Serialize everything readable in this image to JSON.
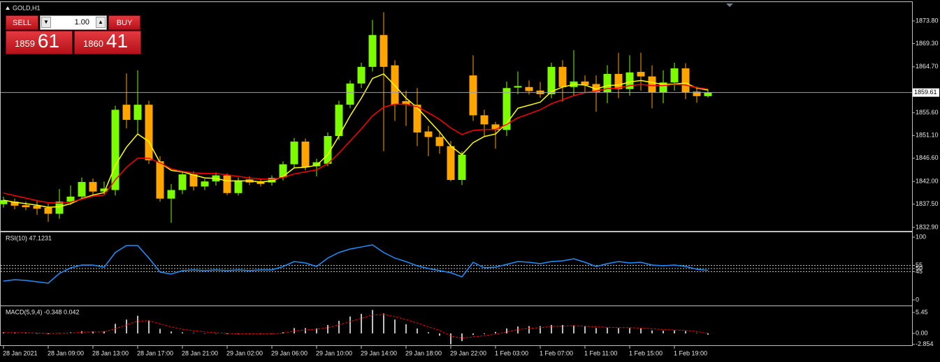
{
  "symbol": "GOLD,H1",
  "trade_panel": {
    "sell": "SELL",
    "buy": "BUY",
    "lots": "1.00",
    "bid_big": "1859",
    "bid_small": "61",
    "ask_big": "1860",
    "ask_small": "41"
  },
  "chart_data": [
    {
      "type": "candlestick",
      "title": "GOLD,H1",
      "categories": [
        "28 Jan 2021",
        null,
        null,
        null,
        "28 Jan 09:00",
        null,
        null,
        null,
        "28 Jan 13:00",
        null,
        null,
        null,
        "28 Jan 17:00",
        null,
        null,
        null,
        "28 Jan 21:00",
        null,
        null,
        null,
        "29 Jan 02:00",
        null,
        null,
        null,
        "29 Jan 06:00",
        null,
        null,
        null,
        "29 Jan 10:00",
        null,
        null,
        null,
        "29 Jan 14:00",
        null,
        null,
        null,
        "29 Jan 18:00",
        null,
        null,
        null,
        "29 Jan 22:00",
        null,
        null,
        null,
        "1 Feb 03:00",
        null,
        null,
        null,
        "1 Feb 07:00",
        null,
        null,
        null,
        "1 Feb 11:00",
        null,
        null,
        null,
        "1 Feb 15:00",
        null,
        null,
        null,
        "1 Feb 19:00",
        null,
        null,
        null
      ],
      "open": [
        1837.5,
        1838.0,
        1837.3,
        1837.2,
        1836.8,
        1835.6,
        1838.0,
        1839.0,
        1841.9,
        1840.0,
        1840.3,
        1857.2,
        1854.2,
        1857.2,
        1846.0,
        1838.6,
        1840.3,
        1843.4,
        1841.0,
        1842.0,
        1843.2,
        1839.7,
        1842.4,
        1842.0,
        1841.8,
        1842.8,
        1845.4,
        1849.9,
        1845.0,
        1845.5,
        1851.0,
        1857.2,
        1861.4,
        1864.7,
        1871.0,
        1865.0,
        1857.9,
        1857.2,
        1851.9,
        1850.8,
        1849.0,
        1842.3,
        1863.0,
        1855.1,
        1853.3,
        1852.2,
        1860.6,
        1860.7,
        1860.0,
        1859.3,
        1864.7,
        1860.7,
        1861.8,
        1861.3,
        1859.7,
        1863.3,
        1860.3,
        1863.7,
        1862.8,
        1859.6,
        1861.6,
        1864.4,
        1859.8,
        1858.9
      ],
      "high": [
        1839.0,
        1838.6,
        1838.0,
        1838.2,
        1837.6,
        1840.5,
        1841.2,
        1842.8,
        1842.6,
        1842.0,
        1857.0,
        1863.4,
        1864.0,
        1858.0,
        1847.0,
        1841.5,
        1844.0,
        1844.0,
        1842.5,
        1843.8,
        1843.6,
        1842.8,
        1843.0,
        1842.5,
        1843.2,
        1846.0,
        1850.6,
        1850.5,
        1846.5,
        1851.7,
        1858.0,
        1862.0,
        1865.5,
        1874.0,
        1875.5,
        1866.0,
        1860.0,
        1860.5,
        1853.0,
        1852.0,
        1850.0,
        1848.0,
        1867.0,
        1856.2,
        1853.8,
        1861.8,
        1863.8,
        1862.0,
        1861.7,
        1865.5,
        1866.0,
        1868.0,
        1863.0,
        1863.0,
        1865.0,
        1867.5,
        1867.0,
        1867.5,
        1865.0,
        1864.0,
        1865.5,
        1865.4,
        1860.8,
        1860.2
      ],
      "low": [
        1836.8,
        1836.5,
        1836.3,
        1835.4,
        1834.0,
        1834.6,
        1837.4,
        1838.5,
        1839.2,
        1839.5,
        1839.2,
        1852.5,
        1851.2,
        1845.5,
        1838.0,
        1833.8,
        1839.5,
        1840.2,
        1840.3,
        1841.2,
        1839.3,
        1839.2,
        1841.3,
        1841.0,
        1841.2,
        1842.2,
        1844.6,
        1844.2,
        1843.0,
        1845.0,
        1850.2,
        1856.5,
        1860.5,
        1863.8,
        1848.0,
        1854.0,
        1853.0,
        1849.0,
        1847.0,
        1847.5,
        1842.0,
        1841.3,
        1854.0,
        1851.0,
        1848.5,
        1851.0,
        1859.3,
        1859.2,
        1858.6,
        1858.5,
        1857.8,
        1858.9,
        1859.6,
        1855.8,
        1857.5,
        1858.5,
        1859.0,
        1860.0,
        1856.5,
        1857.5,
        1860.0,
        1858.3,
        1857.6,
        1858.6
      ],
      "close": [
        1838.3,
        1837.2,
        1836.9,
        1836.6,
        1835.6,
        1838.0,
        1839.0,
        1841.9,
        1840.0,
        1840.6,
        1856.2,
        1854.2,
        1857.2,
        1846.2,
        1838.6,
        1840.3,
        1843.4,
        1841.0,
        1842.0,
        1843.2,
        1839.7,
        1842.2,
        1841.8,
        1841.5,
        1842.7,
        1845.4,
        1849.9,
        1844.8,
        1845.8,
        1851.0,
        1857.2,
        1861.4,
        1864.7,
        1871.0,
        1864.7,
        1857.2,
        1857.2,
        1851.7,
        1850.8,
        1849.0,
        1842.3,
        1847.3,
        1855.1,
        1853.3,
        1852.2,
        1860.5,
        1860.9,
        1859.9,
        1859.3,
        1864.7,
        1860.7,
        1861.8,
        1861.1,
        1859.7,
        1863.3,
        1860.3,
        1863.6,
        1862.8,
        1859.6,
        1861.6,
        1864.4,
        1859.6,
        1858.9,
        1859.61
      ],
      "up_color": "#7cfc00",
      "down_color": "#ffa500",
      "series": [
        {
          "color": "#ffff00",
          "values": [
            1838.3,
            1837.9,
            1837.6,
            1837.3,
            1836.9,
            1837.0,
            1837.6,
            1838.6,
            1839.3,
            1839.8,
            1845.2,
            1848.8,
            1851.4,
            1849.9,
            1845.7,
            1844.2,
            1843.9,
            1843.3,
            1842.7,
            1842.6,
            1842.1,
            1842.1,
            1842.1,
            1841.9,
            1842.1,
            1843.0,
            1844.7,
            1844.8,
            1845.2,
            1847.3,
            1851.0,
            1855.0,
            1858.5,
            1862.4,
            1863.3,
            1861.0,
            1858.5,
            1856.6,
            1854.2,
            1851.8,
            1849.0,
            1847.3,
            1849.7,
            1850.9,
            1851.4,
            1853.5,
            1856.5,
            1857.1,
            1857.7,
            1859.8,
            1860.7,
            1861.2,
            1861.1,
            1860.3,
            1861.0,
            1861.1,
            1861.7,
            1862.0,
            1861.6,
            1861.2,
            1861.3,
            1861.5,
            1860.5,
            1860.1
          ]
        },
        {
          "color": "#ff0000",
          "values": [
            1839.7,
            1839.2,
            1838.7,
            1838.2,
            1837.8,
            1837.7,
            1837.9,
            1838.5,
            1839.1,
            1839.3,
            1842.3,
            1844.8,
            1846.6,
            1846.6,
            1845.7,
            1844.5,
            1844.0,
            1843.7,
            1843.6,
            1843.6,
            1843.3,
            1843.0,
            1842.7,
            1842.5,
            1842.4,
            1842.8,
            1843.5,
            1843.9,
            1844.3,
            1845.5,
            1847.6,
            1850.0,
            1852.4,
            1855.0,
            1856.7,
            1857.3,
            1857.3,
            1856.8,
            1855.6,
            1854.3,
            1852.6,
            1851.3,
            1852.1,
            1852.3,
            1852.3,
            1853.3,
            1854.6,
            1855.4,
            1856.2,
            1857.4,
            1858.2,
            1859.0,
            1859.6,
            1859.9,
            1860.4,
            1860.5,
            1861.0,
            1861.2,
            1861.0,
            1861.0,
            1861.2,
            1861.1,
            1860.6,
            1860.3
          ]
        }
      ],
      "ylim": [
        1832.35,
        1877.25
      ],
      "yticks": [
        {
          "value": 1832.9,
          "label": "1832.90"
        },
        {
          "value": 1837.5,
          "label": "1837.50"
        },
        {
          "value": 1842.0,
          "label": "1842.00"
        },
        {
          "value": 1846.6,
          "label": "1846.60"
        },
        {
          "value": 1851.1,
          "label": "1851.10"
        },
        {
          "value": 1855.6,
          "label": "1855.60"
        },
        {
          "value": 1864.7,
          "label": "1864.70"
        },
        {
          "value": 1869.3,
          "label": "1869.30"
        },
        {
          "value": 1873.8,
          "label": "1873.80"
        }
      ],
      "price_line": {
        "value": 1859.61,
        "label": "1859.61"
      }
    },
    {
      "type": "line",
      "title": "RSI(10) 47.1231",
      "series": [
        {
          "color": "#1e90ff",
          "values": [
            30.0,
            32.2,
            31.1,
            28.9,
            26.7,
            42.2,
            51.1,
            55.6,
            55.6,
            52.2,
            75.6,
            86.7,
            86.7,
            66.7,
            44.4,
            41.1,
            46.7,
            47.8,
            46.7,
            47.8,
            46.7,
            47.8,
            46.7,
            47.8,
            47.8,
            53.3,
            61.1,
            58.9,
            53.3,
            66.7,
            75.6,
            81.1,
            84.4,
            87.8,
            75.6,
            66.7,
            61.1,
            54.4,
            50.0,
            46.7,
            43.3,
            36.7,
            60.0,
            51.1,
            52.2,
            56.7,
            61.1,
            60.0,
            57.8,
            61.1,
            62.2,
            65.6,
            60.0,
            53.3,
            57.8,
            61.1,
            58.9,
            60.0,
            55.6,
            54.4,
            55.6,
            53.3,
            48.9,
            47.1231
          ]
        }
      ],
      "levels": [
        45,
        50,
        55
      ],
      "ylim": [
        -7.8,
        105.6
      ],
      "yticks": [
        0,
        45,
        50,
        55,
        100
      ]
    },
    {
      "type": "bar",
      "title": "MACD(5,9,4) -0.348 0.042",
      "values": [
        0.3,
        0.2,
        0.1,
        0.0,
        -0.2,
        0.1,
        0.3,
        0.6,
        0.5,
        0.5,
        2.5,
        3.6,
        4.6,
        3.4,
        1.2,
        0.5,
        0.3,
        0.1,
        0.0,
        0.0,
        -0.2,
        -0.2,
        -0.1,
        -0.2,
        -0.1,
        0.3,
        1.4,
        1.4,
        1.3,
        2.2,
        3.3,
        4.4,
        5.1,
        6.1,
        5.2,
        3.6,
        2.4,
        1.3,
        0.3,
        -0.6,
        -2.854,
        -2.0,
        -0.4,
        -0.2,
        0.4,
        1.3,
        1.8,
        1.9,
        1.9,
        2.2,
        2.2,
        2.1,
        1.8,
        1.4,
        1.5,
        1.4,
        1.4,
        1.3,
        0.8,
        0.7,
        0.8,
        0.6,
        0.1,
        -0.348
      ],
      "color": "#c0c0c0",
      "series": [
        {
          "color": "#ff0000",
          "dashed": true,
          "values": [
            0.2,
            0.2,
            0.2,
            0.1,
            0.0,
            0.0,
            0.1,
            0.3,
            0.4,
            0.4,
            1.2,
            2.2,
            3.2,
            3.3,
            2.5,
            1.7,
            1.1,
            0.7,
            0.4,
            0.2,
            0.0,
            -0.1,
            -0.1,
            -0.1,
            -0.1,
            0.1,
            0.6,
            0.9,
            1.1,
            1.5,
            2.2,
            3.1,
            3.9,
            4.8,
            4.9,
            4.4,
            3.6,
            2.7,
            1.7,
            0.8,
            -0.7,
            -1.2,
            -0.9,
            -0.6,
            -0.2,
            0.4,
            1.0,
            1.3,
            1.5,
            1.8,
            1.9,
            2.0,
            1.9,
            1.7,
            1.6,
            1.5,
            1.5,
            1.4,
            1.2,
            1.0,
            0.9,
            0.8,
            0.5,
            0.042
          ]
        }
      ],
      "ylim": [
        -2.9,
        6.72
      ],
      "yticks": [
        -2.854,
        {
          "value": 0,
          "label": "0.00"
        },
        5.45
      ]
    }
  ]
}
